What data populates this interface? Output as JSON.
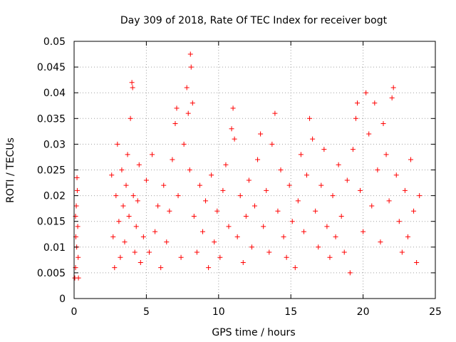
{
  "chart_data": {
    "type": "scatter",
    "title": "Day 309 of 2018, Rate Of TEC Index for receiver bogt",
    "xlabel": "GPS time / hours",
    "ylabel": "ROTI / TECUs",
    "xlim": [
      0,
      25
    ],
    "ylim": [
      0,
      0.05
    ],
    "x_ticks": [
      0,
      5,
      10,
      15,
      20,
      25
    ],
    "y_ticks": [
      0,
      0.005,
      0.01,
      0.015,
      0.02,
      0.025,
      0.03,
      0.035,
      0.04,
      0.045,
      0.05
    ],
    "x_tick_labels": [
      "0",
      "5",
      "10",
      "15",
      "20",
      "25"
    ],
    "y_tick_labels": [
      "0",
      "0.005",
      "0.01",
      "0.015",
      "0.02",
      "0.025",
      "0.03",
      "0.035",
      "0.04",
      "0.045",
      "0.05"
    ],
    "grid": true,
    "legend": "none",
    "marker": "+",
    "color": "#ff0000",
    "series": [
      {
        "points": [
          [
            0.05,
            0.004
          ],
          [
            0.1,
            0.006
          ],
          [
            0.12,
            0.012
          ],
          [
            0.15,
            0.018
          ],
          [
            0.2,
            0.0235
          ],
          [
            0.22,
            0.021
          ],
          [
            0.25,
            0.014
          ],
          [
            0.28,
            0.008
          ],
          [
            0.3,
            0.004
          ],
          [
            0.1,
            0.016
          ],
          [
            0.18,
            0.01
          ],
          [
            2.6,
            0.024
          ],
          [
            2.7,
            0.012
          ],
          [
            2.8,
            0.006
          ],
          [
            2.9,
            0.02
          ],
          [
            3.0,
            0.03
          ],
          [
            3.1,
            0.015
          ],
          [
            3.2,
            0.008
          ],
          [
            3.3,
            0.025
          ],
          [
            3.4,
            0.018
          ],
          [
            3.5,
            0.011
          ],
          [
            3.6,
            0.022
          ],
          [
            3.7,
            0.028
          ],
          [
            3.8,
            0.016
          ],
          [
            3.9,
            0.035
          ],
          [
            4.0,
            0.042
          ],
          [
            4.05,
            0.041
          ],
          [
            4.1,
            0.02
          ],
          [
            4.2,
            0.009
          ],
          [
            4.3,
            0.014
          ],
          [
            4.4,
            0.019
          ],
          [
            4.5,
            0.026
          ],
          [
            4.6,
            0.007
          ],
          [
            4.8,
            0.012
          ],
          [
            5.0,
            0.023
          ],
          [
            5.2,
            0.009
          ],
          [
            5.4,
            0.028
          ],
          [
            5.6,
            0.013
          ],
          [
            5.8,
            0.018
          ],
          [
            6.0,
            0.006
          ],
          [
            6.2,
            0.022
          ],
          [
            6.4,
            0.011
          ],
          [
            6.6,
            0.017
          ],
          [
            6.8,
            0.027
          ],
          [
            7.0,
            0.034
          ],
          [
            7.1,
            0.037
          ],
          [
            7.2,
            0.02
          ],
          [
            7.4,
            0.008
          ],
          [
            7.6,
            0.03
          ],
          [
            7.8,
            0.041
          ],
          [
            7.9,
            0.036
          ],
          [
            8.0,
            0.025
          ],
          [
            8.05,
            0.0475
          ],
          [
            8.1,
            0.045
          ],
          [
            8.2,
            0.038
          ],
          [
            8.3,
            0.016
          ],
          [
            8.5,
            0.009
          ],
          [
            8.7,
            0.022
          ],
          [
            8.9,
            0.013
          ],
          [
            9.1,
            0.019
          ],
          [
            9.3,
            0.006
          ],
          [
            9.5,
            0.024
          ],
          [
            9.7,
            0.011
          ],
          [
            9.9,
            0.017
          ],
          [
            10.1,
            0.008
          ],
          [
            10.3,
            0.021
          ],
          [
            10.5,
            0.026
          ],
          [
            10.7,
            0.014
          ],
          [
            10.9,
            0.033
          ],
          [
            11.0,
            0.037
          ],
          [
            11.1,
            0.031
          ],
          [
            11.3,
            0.012
          ],
          [
            11.5,
            0.02
          ],
          [
            11.7,
            0.007
          ],
          [
            11.9,
            0.016
          ],
          [
            12.1,
            0.023
          ],
          [
            12.3,
            0.01
          ],
          [
            12.5,
            0.018
          ],
          [
            12.7,
            0.027
          ],
          [
            12.9,
            0.032
          ],
          [
            13.1,
            0.014
          ],
          [
            13.3,
            0.021
          ],
          [
            13.5,
            0.009
          ],
          [
            13.7,
            0.03
          ],
          [
            13.9,
            0.036
          ],
          [
            14.1,
            0.017
          ],
          [
            14.3,
            0.025
          ],
          [
            14.5,
            0.012
          ],
          [
            14.7,
            0.008
          ],
          [
            14.9,
            0.022
          ],
          [
            15.1,
            0.015
          ],
          [
            15.3,
            0.006
          ],
          [
            15.5,
            0.019
          ],
          [
            15.7,
            0.028
          ],
          [
            15.9,
            0.013
          ],
          [
            16.1,
            0.024
          ],
          [
            16.3,
            0.035
          ],
          [
            16.5,
            0.031
          ],
          [
            16.7,
            0.017
          ],
          [
            16.9,
            0.01
          ],
          [
            17.1,
            0.022
          ],
          [
            17.3,
            0.029
          ],
          [
            17.5,
            0.014
          ],
          [
            17.7,
            0.008
          ],
          [
            17.9,
            0.02
          ],
          [
            18.1,
            0.012
          ],
          [
            18.3,
            0.026
          ],
          [
            18.5,
            0.016
          ],
          [
            18.7,
            0.009
          ],
          [
            18.9,
            0.023
          ],
          [
            19.1,
            0.005
          ],
          [
            19.3,
            0.029
          ],
          [
            19.5,
            0.035
          ],
          [
            19.6,
            0.038
          ],
          [
            19.8,
            0.021
          ],
          [
            20.0,
            0.013
          ],
          [
            20.2,
            0.04
          ],
          [
            20.4,
            0.032
          ],
          [
            20.6,
            0.018
          ],
          [
            20.8,
            0.038
          ],
          [
            21.0,
            0.025
          ],
          [
            21.2,
            0.011
          ],
          [
            21.4,
            0.034
          ],
          [
            21.6,
            0.028
          ],
          [
            21.8,
            0.019
          ],
          [
            22.0,
            0.039
          ],
          [
            22.1,
            0.041
          ],
          [
            22.3,
            0.024
          ],
          [
            22.5,
            0.015
          ],
          [
            22.7,
            0.009
          ],
          [
            22.9,
            0.021
          ],
          [
            23.1,
            0.012
          ],
          [
            23.3,
            0.027
          ],
          [
            23.5,
            0.017
          ],
          [
            23.7,
            0.007
          ],
          [
            23.9,
            0.02
          ]
        ]
      }
    ]
  }
}
